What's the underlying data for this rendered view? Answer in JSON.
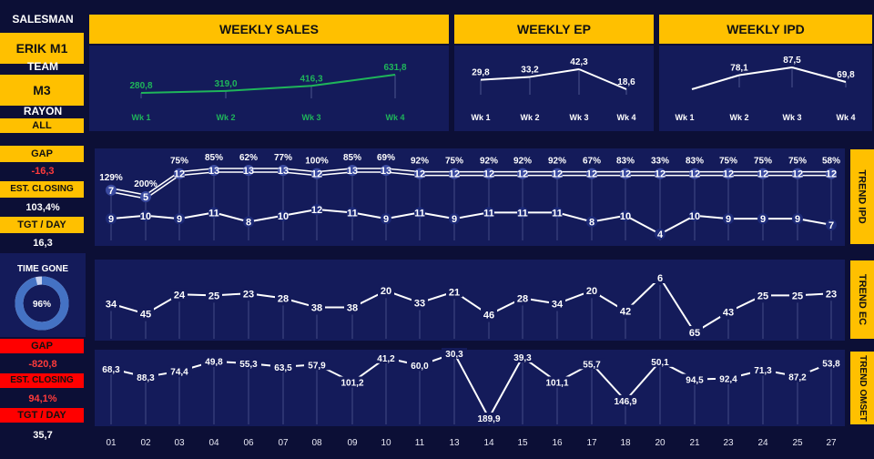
{
  "sidebar": {
    "salesman_label": "SALESMAN",
    "salesman_value": "ERIK M1",
    "team_label": "TEAM",
    "team_value": "M3",
    "rayon_label": "RAYON",
    "rayon_value": "ALL",
    "ipd": {
      "gap_label": "GAP",
      "gap_value": "-16,3",
      "est_label": "EST. CLOSING",
      "est_value": "103,4%",
      "tgt_label": "TGT / DAY",
      "tgt_value": "16,3"
    },
    "time_gone_label": "TIME GONE",
    "time_gone_value": "96%",
    "time_gone_fraction": 0.96,
    "omset": {
      "gap_label": "GAP",
      "gap_value": "-820,8",
      "est_label": "EST. CLOSING",
      "est_value": "94,1%",
      "tgt_label": "TGT / DAY",
      "tgt_value": "35,7"
    }
  },
  "headers": {
    "weekly_sales": "WEEKLY SALES",
    "weekly_ep": "WEEKLY EP",
    "weekly_ipd": "WEEKLY IPD"
  },
  "side_tabs": {
    "trend_ipd": "TREND IPD",
    "trend_ec": "TREND EC",
    "trend_omset": "TREND OMSET"
  },
  "colors": {
    "background": "#0c0f36",
    "panel": "#141b5a",
    "accent_yellow": "#ffc000",
    "alert_red": "#ff0000",
    "sales_green": "#1fb55a",
    "ring_blue": "#4472c4"
  },
  "chart_data": [
    {
      "type": "line",
      "title": "WEEKLY SALES",
      "categories": [
        "Wk 1",
        "Wk 2",
        "Wk 3",
        "Wk 4"
      ],
      "values": [
        280.8,
        319.0,
        416.3,
        631.8
      ],
      "labels": [
        "280,8",
        "319,0",
        "416,3",
        "631,8"
      ]
    },
    {
      "type": "line",
      "title": "WEEKLY EP",
      "categories": [
        "Wk 1",
        "Wk 2",
        "Wk 3",
        "Wk 4"
      ],
      "values": [
        29.8,
        33.2,
        42.3,
        18.6
      ],
      "labels": [
        "29,8",
        "33,2",
        "42,3",
        "18,6"
      ]
    },
    {
      "type": "line",
      "title": "WEEKLY IPD",
      "categories": [
        "Wk 1",
        "Wk 2",
        "Wk 3",
        "Wk 4"
      ],
      "values": [
        null,
        78.1,
        87.5,
        69.8
      ],
      "labels": [
        "",
        "78,1",
        "87,5",
        "69,8"
      ]
    },
    {
      "type": "line",
      "title": "TREND IPD",
      "categories": [
        "01",
        "02",
        "03",
        "04",
        "06",
        "07",
        "08",
        "09",
        "10",
        "11",
        "13",
        "14",
        "15",
        "16",
        "17",
        "18",
        "20",
        "21",
        "23",
        "24",
        "25",
        "27"
      ],
      "series": [
        {
          "values": [
            7,
            5,
            12,
            13,
            13,
            13,
            12,
            13,
            13,
            12,
            12,
            12,
            12,
            12,
            12,
            12,
            12,
            12,
            12,
            12,
            12,
            12
          ]
        },
        {
          "values": [
            9,
            10,
            9,
            11,
            8,
            10,
            12,
            11,
            9,
            11,
            9,
            11,
            11,
            11,
            8,
            10,
            4,
            10,
            9,
            9,
            9,
            7
          ]
        }
      ],
      "percent_labels": [
        "129%",
        "200%",
        "75%",
        "85%",
        "62%",
        "77%",
        "100%",
        "85%",
        "69%",
        "92%",
        "75%",
        "92%",
        "92%",
        "92%",
        "67%",
        "83%",
        "33%",
        "83%",
        "75%",
        "75%",
        "75%",
        "58%"
      ]
    },
    {
      "type": "line",
      "title": "TREND EC",
      "categories": [
        "01",
        "02",
        "03",
        "04",
        "06",
        "07",
        "08",
        "09",
        "10",
        "11",
        "13",
        "14",
        "15",
        "16",
        "17",
        "18",
        "20",
        "21",
        "23",
        "24",
        "25",
        "27"
      ],
      "values": [
        34,
        45,
        24,
        25,
        23,
        28,
        38,
        38,
        20,
        33,
        21,
        46,
        28,
        34,
        20,
        42,
        6,
        65,
        43,
        25,
        25,
        23
      ]
    },
    {
      "type": "line",
      "title": "TREND OMSET",
      "categories": [
        "01",
        "02",
        "03",
        "04",
        "06",
        "07",
        "08",
        "09",
        "10",
        "11",
        "13",
        "14",
        "15",
        "16",
        "17",
        "18",
        "20",
        "21",
        "23",
        "24",
        "25",
        "27"
      ],
      "values": [
        68.3,
        88.3,
        74.4,
        49.8,
        55.3,
        63.5,
        57.9,
        101.2,
        41.2,
        60.0,
        30.3,
        189.9,
        39.3,
        101.1,
        55.7,
        146.9,
        50.1,
        94.5,
        92.4,
        71.3,
        87.2,
        53.8
      ],
      "labels": [
        "68,3",
        "88,3",
        "74,4",
        "49,8",
        "55,3",
        "63,5",
        "57,9",
        "101,2",
        "41,2",
        "60,0",
        "30,3",
        "189,9",
        "39,3",
        "101,1",
        "55,7",
        "146,9",
        "50,1",
        "94,5",
        "92,4",
        "71,3",
        "87,2",
        "53,8"
      ]
    }
  ]
}
